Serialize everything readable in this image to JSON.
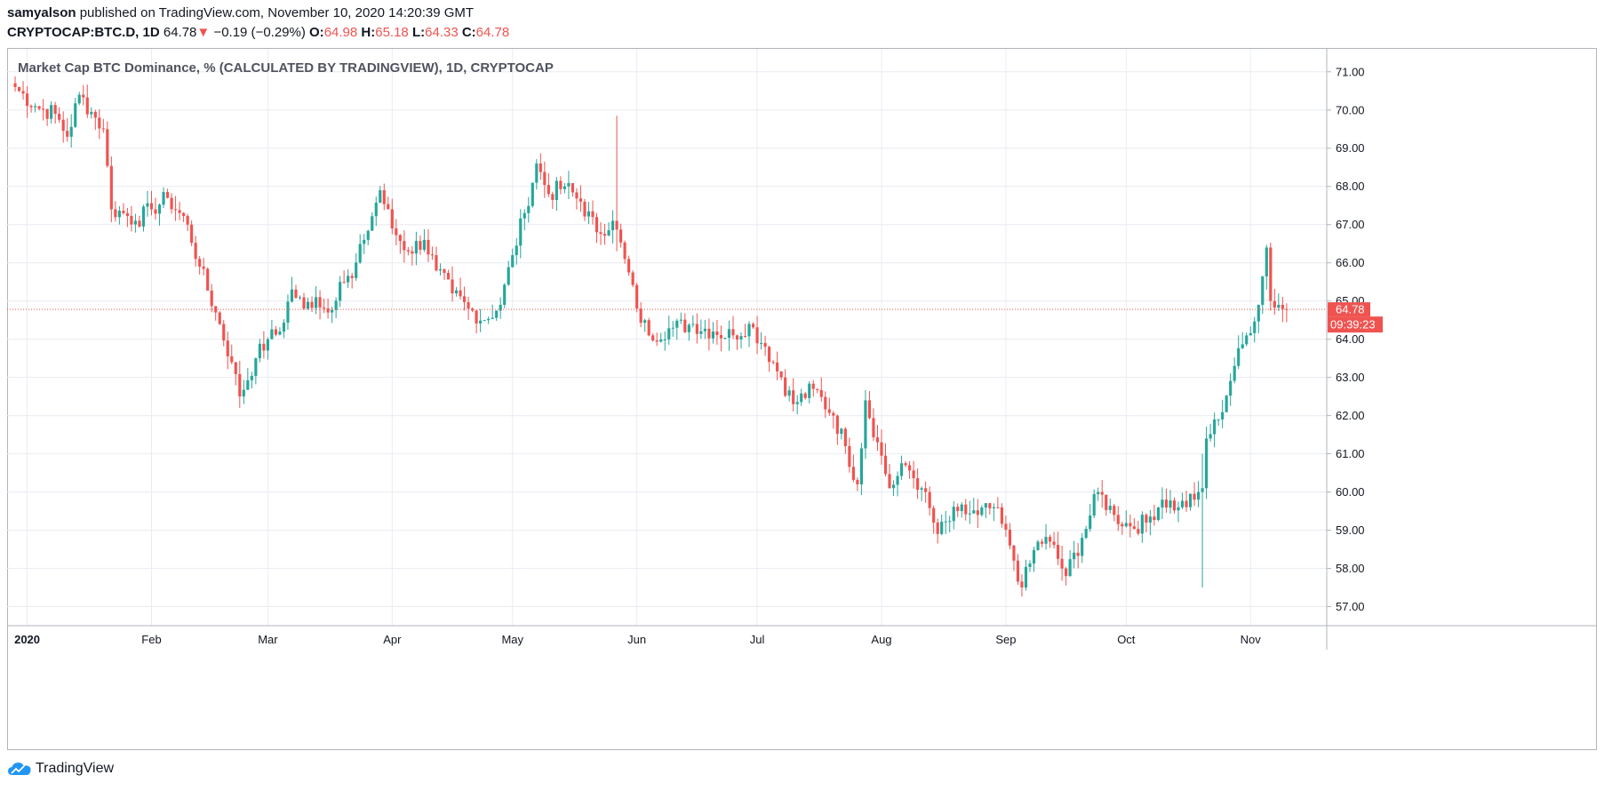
{
  "header": {
    "author": "samyalson",
    "published_text": "published on TradingView.com, November 10, 2020 14:20:39 GMT",
    "symbol": "CRYPTOCAP:BTC.D, 1D",
    "last": "64.78",
    "change_arrow": "▼",
    "change": "−0.19 (−0.29%)",
    "o_label": "O:",
    "o_value": "64.98",
    "h_label": "H:",
    "h_value": "65.18",
    "l_label": "L:",
    "l_value": "64.33",
    "c_label": "C:",
    "c_value": "64.78"
  },
  "legend_title": "Market Cap BTC Dominance, % (CALCULATED BY TRADINGVIEW), 1D, CRYPTOCAP",
  "footer": {
    "brand": "TradingView",
    "logo_icon": "tradingview-cloud-icon"
  },
  "colors": {
    "up": "#26a69a",
    "down": "#ef5350",
    "grid": "#e9ecf2",
    "text": "#131722"
  },
  "chart_data": {
    "type": "candlestick",
    "title": "Market Cap BTC Dominance, % (CALCULATED BY TRADINGVIEW), 1D, CRYPTOCAP",
    "x_labels": [
      "2020",
      "Feb",
      "Mar",
      "Apr",
      "May",
      "Jun",
      "Jul",
      "Aug",
      "Sep",
      "Oct",
      "Nov"
    ],
    "x_label_dates": [
      "2020-01-01",
      "2020-02-01",
      "2020-03-01",
      "2020-04-01",
      "2020-05-01",
      "2020-06-01",
      "2020-07-01",
      "2020-08-01",
      "2020-09-01",
      "2020-10-01",
      "2020-11-01"
    ],
    "y_ticks": [
      "71.00",
      "70.00",
      "69.00",
      "68.00",
      "67.00",
      "66.00",
      "65.00",
      "64.00",
      "63.00",
      "62.00",
      "61.00",
      "60.00",
      "59.00",
      "58.00",
      "57.00"
    ],
    "ylim": [
      56.5,
      71.6
    ],
    "x_range": [
      "2019-12-27",
      "2020-11-20"
    ],
    "grid": true,
    "last_price": 64.78,
    "last_price_label": "64.78",
    "countdown_label": "09:39:23",
    "close_series": [
      [
        "2019-12-29",
        70.6
      ],
      [
        "2020-01-03",
        70.1
      ],
      [
        "2020-01-08",
        69.9
      ],
      [
        "2020-01-11",
        69.3
      ],
      [
        "2020-01-14",
        70.4
      ],
      [
        "2020-01-18",
        69.8
      ],
      [
        "2020-01-20",
        69.5
      ],
      [
        "2020-01-22",
        67.4
      ],
      [
        "2020-01-25",
        67.3
      ],
      [
        "2020-01-28",
        67.1
      ],
      [
        "2020-02-01",
        67.4
      ],
      [
        "2020-02-05",
        67.7
      ],
      [
        "2020-02-10",
        67.0
      ],
      [
        "2020-02-13",
        65.9
      ],
      [
        "2020-02-17",
        64.7
      ],
      [
        "2020-02-21",
        63.4
      ],
      [
        "2020-02-23",
        62.5
      ],
      [
        "2020-02-27",
        63.5
      ],
      [
        "2020-03-01",
        64.0
      ],
      [
        "2020-03-04",
        64.2
      ],
      [
        "2020-03-07",
        65.3
      ],
      [
        "2020-03-10",
        64.8
      ],
      [
        "2020-03-13",
        65.1
      ],
      [
        "2020-03-16",
        64.7
      ],
      [
        "2020-03-19",
        65.5
      ],
      [
        "2020-03-22",
        65.6
      ],
      [
        "2020-03-25",
        66.6
      ],
      [
        "2020-03-29",
        67.9
      ],
      [
        "2020-04-01",
        66.9
      ],
      [
        "2020-04-05",
        66.3
      ],
      [
        "2020-04-09",
        66.6
      ],
      [
        "2020-04-12",
        65.8
      ],
      [
        "2020-04-16",
        65.2
      ],
      [
        "2020-04-20",
        64.8
      ],
      [
        "2020-04-24",
        64.5
      ],
      [
        "2020-04-28",
        64.9
      ],
      [
        "2020-05-01",
        66.2
      ],
      [
        "2020-05-04",
        67.3
      ],
      [
        "2020-05-07",
        68.6
      ],
      [
        "2020-05-10",
        67.8
      ],
      [
        "2020-05-14",
        68.0
      ],
      [
        "2020-05-18",
        67.6
      ],
      [
        "2020-05-22",
        66.8
      ],
      [
        "2020-05-26",
        67.1
      ],
      [
        "2020-05-29",
        66.1
      ],
      [
        "2020-06-01",
        64.8
      ],
      [
        "2020-06-04",
        64.1
      ],
      [
        "2020-06-10",
        64.3
      ],
      [
        "2020-06-15",
        64.4
      ],
      [
        "2020-06-20",
        64.2
      ],
      [
        "2020-06-25",
        64.1
      ],
      [
        "2020-06-29",
        64.4
      ],
      [
        "2020-07-03",
        63.8
      ],
      [
        "2020-07-07",
        63.0
      ],
      [
        "2020-07-10",
        62.3
      ],
      [
        "2020-07-15",
        62.7
      ],
      [
        "2020-07-20",
        62.0
      ],
      [
        "2020-07-23",
        61.2
      ],
      [
        "2020-07-26",
        60.2
      ],
      [
        "2020-07-28",
        62.4
      ],
      [
        "2020-07-31",
        61.3
      ],
      [
        "2020-08-03",
        60.1
      ],
      [
        "2020-08-07",
        60.7
      ],
      [
        "2020-08-11",
        60.1
      ],
      [
        "2020-08-15",
        58.9
      ],
      [
        "2020-08-20",
        59.5
      ],
      [
        "2020-08-25",
        59.4
      ],
      [
        "2020-08-29",
        59.6
      ],
      [
        "2020-09-02",
        58.6
      ],
      [
        "2020-09-05",
        57.5
      ],
      [
        "2020-09-09",
        58.7
      ],
      [
        "2020-09-12",
        58.7
      ],
      [
        "2020-09-16",
        57.8
      ],
      [
        "2020-09-20",
        58.8
      ],
      [
        "2020-09-24",
        60.0
      ],
      [
        "2020-09-28",
        59.4
      ],
      [
        "2020-10-02",
        59.1
      ],
      [
        "2020-10-06",
        59.2
      ],
      [
        "2020-10-10",
        59.8
      ],
      [
        "2020-10-14",
        59.6
      ],
      [
        "2020-10-18",
        59.8
      ],
      [
        "2020-10-20",
        60.1
      ],
      [
        "2020-10-21",
        61.4
      ],
      [
        "2020-10-24",
        61.9
      ],
      [
        "2020-10-28",
        63.3
      ],
      [
        "2020-10-31",
        64.1
      ],
      [
        "2020-11-03",
        64.9
      ],
      [
        "2020-11-05",
        66.4
      ],
      [
        "2020-11-06",
        65.0
      ],
      [
        "2020-11-08",
        64.9
      ],
      [
        "2020-11-10",
        64.78
      ]
    ],
    "notable_wicks": [
      {
        "date": "2020-05-27",
        "high": 69.85,
        "low": 66.3
      },
      {
        "date": "2020-10-20",
        "high": 61.0,
        "low": 57.5
      }
    ]
  }
}
